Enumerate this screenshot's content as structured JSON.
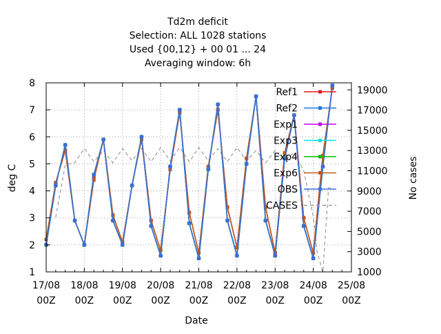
{
  "chart_data": {
    "type": "line",
    "title": [
      "Td2m deficit",
      "Selection: ALL    1028 stations",
      "Used {00,12} + 00 01 ... 24",
      "Averaging window:  6h"
    ],
    "xlabel": "Date",
    "ylabel": "deg C",
    "y2label": "No cases",
    "xlim": [
      0,
      8
    ],
    "ylim": [
      1,
      8
    ],
    "y2lim": [
      1000,
      19700
    ],
    "x_tick_labels": [
      [
        "17/08",
        "00Z"
      ],
      [
        "18/08",
        "00Z"
      ],
      [
        "19/08",
        "00Z"
      ],
      [
        "20/08",
        "00Z"
      ],
      [
        "21/08",
        "00Z"
      ],
      [
        "22/08",
        "00Z"
      ],
      [
        "23/08",
        "00Z"
      ],
      [
        "24/08",
        "00Z"
      ],
      [
        "25/08",
        "00Z"
      ]
    ],
    "y_ticks": [
      1,
      2,
      3,
      4,
      5,
      6,
      7,
      8
    ],
    "y2_ticks": [
      1000,
      3000,
      5000,
      7000,
      9000,
      11000,
      13000,
      15000,
      17000,
      19000
    ],
    "grid": true,
    "legend_position": "top-right inside",
    "x": [
      0.0,
      0.25,
      0.5,
      0.75,
      1.0,
      1.25,
      1.5,
      1.75,
      2.0,
      2.25,
      2.5,
      2.75,
      3.0,
      3.25,
      3.5,
      3.75,
      4.0,
      4.25,
      4.5,
      4.75,
      5.0,
      5.25,
      5.5,
      5.75,
      6.0,
      6.25,
      6.5,
      6.75,
      7.0,
      7.25,
      7.5,
      7.75
    ],
    "series": [
      {
        "name": "Ref1",
        "color": "#e41a1c",
        "marker": "square",
        "values": [
          2.2,
          4.3,
          5.5,
          2.9,
          2.0,
          4.5,
          5.9,
          3.1,
          2.1,
          4.2,
          6.0,
          2.9,
          1.8,
          4.8,
          6.9,
          3.2,
          1.7,
          4.9,
          7.0,
          3.4,
          1.9,
          5.2,
          7.5,
          3.4,
          1.7,
          5.4,
          6.8,
          3.0,
          1.7,
          5.3,
          7.8,
          null
        ]
      },
      {
        "name": "Ref2",
        "color": "#1f77e0",
        "marker": "square",
        "values": [
          2.0,
          4.2,
          5.7,
          2.9,
          2.0,
          4.6,
          5.9,
          2.9,
          2.0,
          4.2,
          6.0,
          2.7,
          1.6,
          4.9,
          7.0,
          2.8,
          1.5,
          4.8,
          7.2,
          2.9,
          1.6,
          5.0,
          7.5,
          2.9,
          1.6,
          5.2,
          6.8,
          2.7,
          1.5,
          4.9,
          7.9,
          null
        ]
      },
      {
        "name": "Exp1",
        "color": "#c000ff",
        "marker": "square",
        "values": [
          2.0,
          4.2,
          5.7,
          2.9,
          2.0,
          4.6,
          5.9,
          2.9,
          2.0,
          4.2,
          6.0,
          2.7,
          1.6,
          4.9,
          7.0,
          2.8,
          1.5,
          4.8,
          7.2,
          2.9,
          1.6,
          5.0,
          7.5,
          2.9,
          1.6,
          5.2,
          6.8,
          2.7,
          1.5,
          4.9,
          7.9,
          null
        ]
      },
      {
        "name": "Exp3",
        "color": "#00e5e5",
        "marker": "square",
        "values": [
          2.0,
          4.2,
          5.7,
          2.9,
          2.0,
          4.6,
          5.9,
          2.9,
          2.0,
          4.2,
          6.0,
          2.7,
          1.6,
          4.9,
          7.0,
          2.8,
          1.5,
          4.8,
          7.2,
          2.9,
          1.6,
          5.0,
          7.5,
          2.9,
          1.6,
          5.2,
          6.8,
          2.7,
          1.5,
          4.9,
          7.9,
          null
        ]
      },
      {
        "name": "Exp4",
        "color": "#00c000",
        "marker": "square",
        "values": [
          2.0,
          4.2,
          5.7,
          2.9,
          2.0,
          4.6,
          5.9,
          2.9,
          2.0,
          4.2,
          6.0,
          2.7,
          1.6,
          4.9,
          7.0,
          2.8,
          1.5,
          4.8,
          7.2,
          2.9,
          1.6,
          5.0,
          7.5,
          2.9,
          1.6,
          5.2,
          6.8,
          2.7,
          1.5,
          4.9,
          7.9,
          null
        ]
      },
      {
        "name": "Exp6",
        "color": "#c05a1a",
        "marker": "square",
        "values": [
          2.2,
          4.3,
          5.5,
          2.9,
          2.0,
          4.4,
          5.9,
          3.1,
          2.1,
          4.2,
          5.9,
          2.9,
          1.8,
          4.8,
          6.9,
          3.2,
          1.7,
          4.9,
          7.0,
          3.4,
          1.9,
          5.2,
          7.5,
          3.4,
          1.7,
          5.4,
          6.8,
          3.0,
          1.7,
          5.3,
          7.8,
          null
        ]
      },
      {
        "name": "OBS",
        "color": "#3a6fd8",
        "marker": "circle",
        "values": [
          2.0,
          4.2,
          5.7,
          2.9,
          2.0,
          4.6,
          5.9,
          2.9,
          2.0,
          4.2,
          6.0,
          2.7,
          1.6,
          4.9,
          7.0,
          2.8,
          1.5,
          4.8,
          7.2,
          2.9,
          1.6,
          5.0,
          7.5,
          2.9,
          1.6,
          5.2,
          6.8,
          2.7,
          1.5,
          4.9,
          7.9,
          null
        ]
      }
    ],
    "cases": {
      "name": "CASES",
      "color": "#999999",
      "axis": "y2",
      "x": [
        0.25,
        0.5,
        0.75,
        1.0,
        1.25,
        1.5,
        1.75,
        2.0,
        2.25,
        2.5,
        2.75,
        3.0,
        3.25,
        3.5,
        3.75,
        4.0,
        4.25,
        4.5,
        4.75,
        5.0,
        5.25,
        5.5,
        5.75,
        6.0,
        6.25,
        6.5,
        6.75,
        7.0,
        7.1,
        7.25,
        7.4,
        7.5
      ],
      "values": [
        6400,
        11600,
        11800,
        13200,
        11900,
        13000,
        11800,
        13200,
        12000,
        13200,
        11900,
        13300,
        12000,
        13300,
        11900,
        13300,
        12000,
        13200,
        11900,
        13300,
        12000,
        13000,
        11800,
        13000,
        12000,
        12800,
        11000,
        6500,
        3000,
        1000,
        9300,
        9400
      ]
    }
  }
}
